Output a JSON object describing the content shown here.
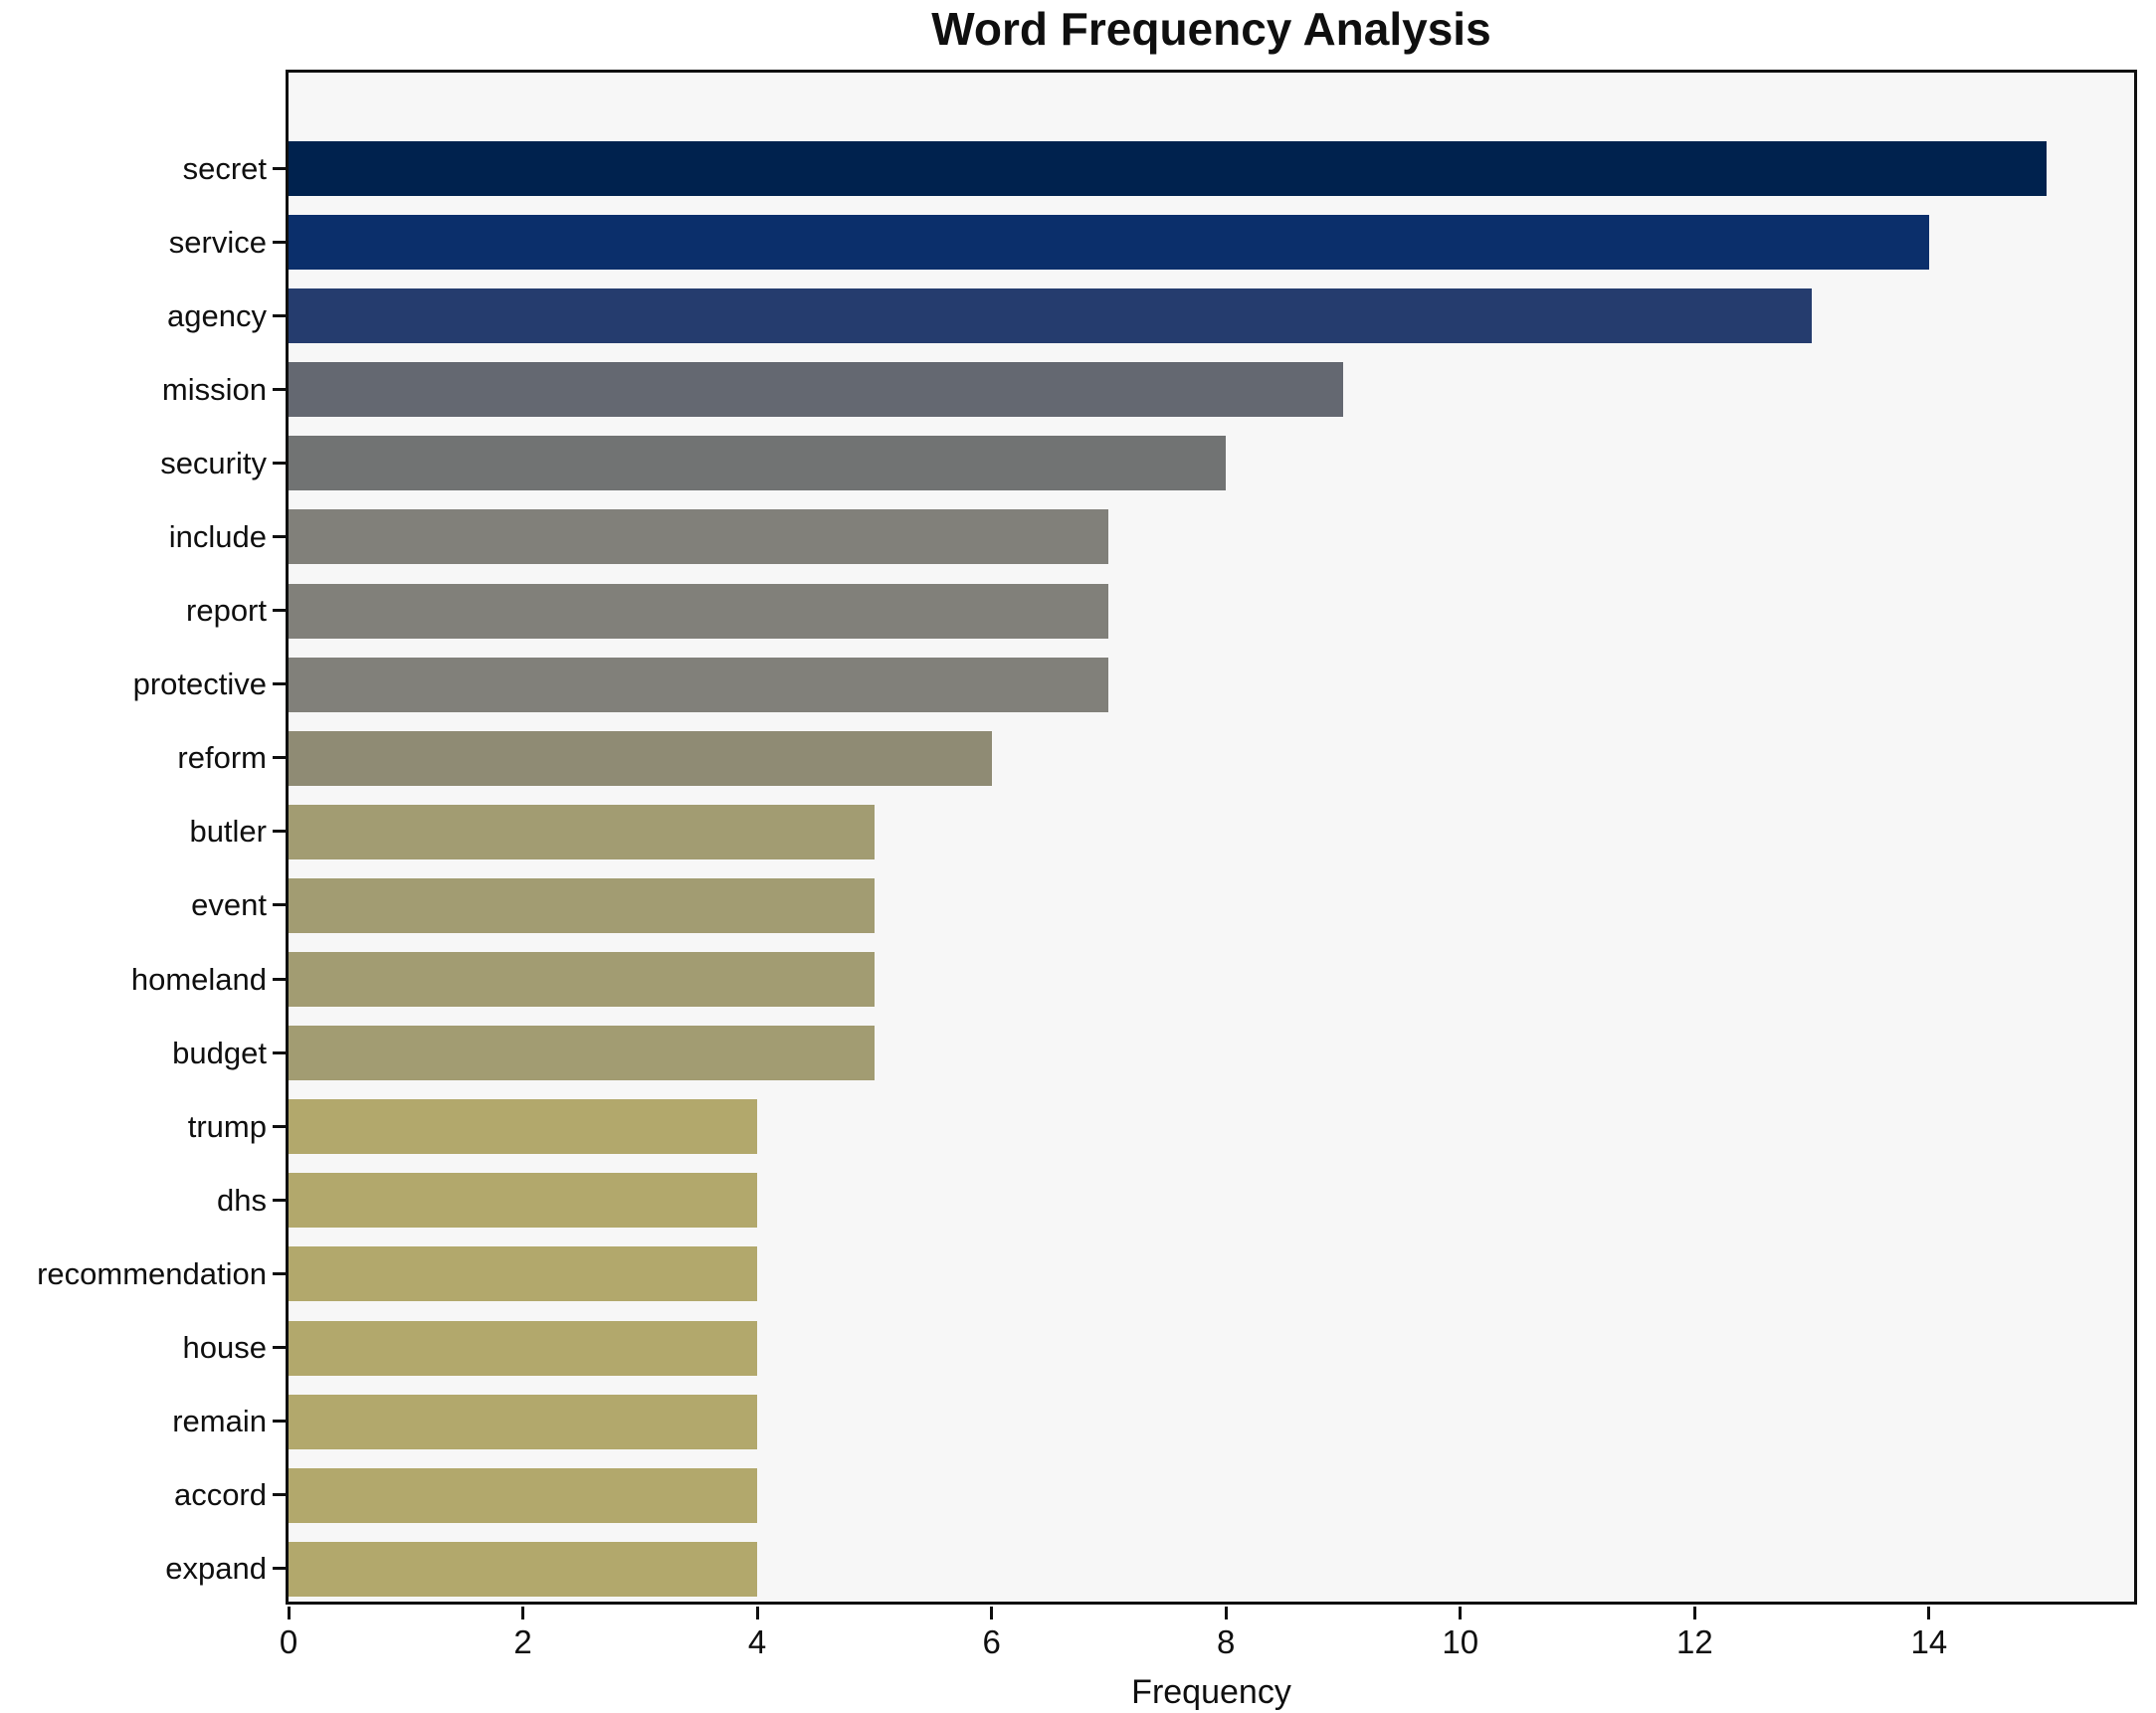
{
  "page": {
    "background": "#ffffff"
  },
  "chart_data": {
    "type": "bar",
    "orientation": "horizontal",
    "title": "Word Frequency Analysis",
    "xlabel": "Frequency",
    "ylabel": "",
    "categories": [
      "secret",
      "service",
      "agency",
      "mission",
      "security",
      "include",
      "report",
      "protective",
      "reform",
      "butler",
      "event",
      "homeland",
      "budget",
      "trump",
      "dhs",
      "recommendation",
      "house",
      "remain",
      "accord",
      "expand"
    ],
    "values": [
      15,
      14,
      13,
      9,
      8,
      7,
      7,
      7,
      6,
      5,
      5,
      5,
      5,
      4,
      4,
      4,
      4,
      4,
      4,
      4
    ],
    "bar_colors": [
      "#00224e",
      "#0b2f6b",
      "#253c6e",
      "#646871",
      "#717373",
      "#81807a",
      "#81807a",
      "#81807a",
      "#8f8b74",
      "#a29c72",
      "#a29c72",
      "#a29c72",
      "#a29c72",
      "#b2a86c",
      "#b2a86c",
      "#b2a86c",
      "#b2a86c",
      "#b2a86c",
      "#b2a86c",
      "#b2a86c"
    ],
    "xlim": [
      0,
      15.75
    ],
    "xticks": [
      0,
      2,
      4,
      6,
      8,
      10,
      12,
      14
    ],
    "grid": false,
    "legend_position": "none",
    "plot_background": "#f7f7f7",
    "spine_color": "#0f0f0f"
  }
}
